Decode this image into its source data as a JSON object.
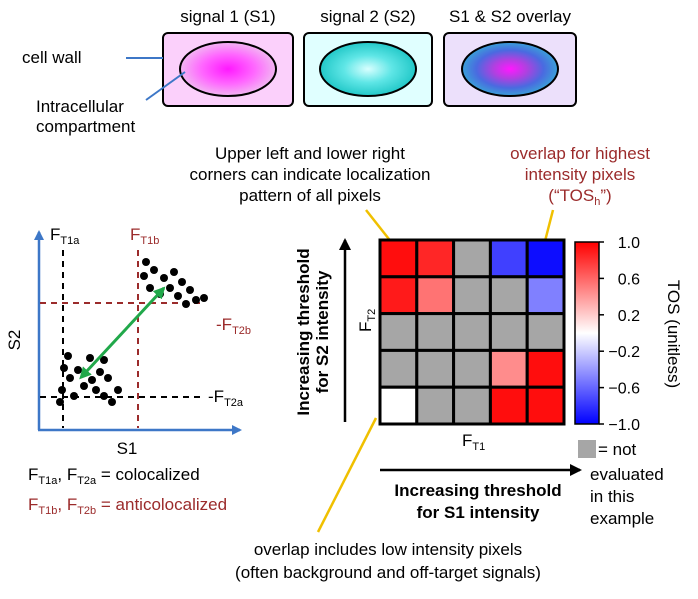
{
  "cells": {
    "labels": [
      "signal 1 (S1)",
      "signal 2 (S2)",
      "S1 & S2 overlay"
    ],
    "cell_wall_label": "cell wall",
    "compartment_label_line1": "Intracellular",
    "compartment_label_line2": "compartment"
  },
  "annotations": {
    "corners_line1": "Upper left and lower right",
    "corners_line2": "corners can indicate localization",
    "corners_line3": "pattern of all pixels",
    "highest_line1": "overlap for highest",
    "highest_line2": "intensity pixels",
    "highest_line3_pre": "(“TOS",
    "highest_line3_sub": "h",
    "highest_line3_post": "”)",
    "low_line1": "overlap includes low intensity pixels",
    "low_line2": "(often background and off-target signals)"
  },
  "scatter": {
    "x_label": "S1",
    "y_label": "S2",
    "ft1a": {
      "main": "F",
      "sub": "T1a"
    },
    "ft1b": {
      "main": "F",
      "sub": "T1b"
    },
    "ft2a": {
      "main": "F",
      "sub": "T2a"
    },
    "ft2b": {
      "main": "F",
      "sub": "T2b"
    },
    "legend_colocalized": {
      "a_main": "F",
      "a_sub": "T1a",
      "sep": ", ",
      "b_main": "F",
      "b_sub": "T2a",
      "text": " = colocalized"
    },
    "legend_anticolocalized": {
      "a_main": "F",
      "a_sub": "T1b",
      "sep": ", ",
      "b_main": "F",
      "b_sub": "T2b",
      "text": " = anticolocalized"
    }
  },
  "heatmap": {
    "ylabel_line1": "Increasing threshold",
    "ylabel_line2": "for S2 intensity",
    "xlabel_line1": "Increasing threshold",
    "xlabel_line2": "for S1 intensity",
    "ft1": {
      "main": "F",
      "sub": "T1"
    },
    "ft2": {
      "main": "F",
      "sub": "T2"
    },
    "colorbar_label": "TOS (unitless)",
    "colorbar_ticks": [
      "1.0",
      "0.6",
      "0.2",
      "−0.2",
      "−0.6",
      "−1.0"
    ],
    "not_evaluated_line1": "= not",
    "not_evaluated_line2": "evaluated",
    "not_evaluated_line3": "in this",
    "not_evaluated_line4": "example"
  },
  "chart_data": {
    "type": "heatmap",
    "ylim": [
      -1.0,
      1.0
    ],
    "grid": [
      [
        0.95,
        0.85,
        null,
        -0.75,
        -0.95
      ],
      [
        0.9,
        0.55,
        null,
        null,
        -0.5
      ],
      [
        null,
        null,
        null,
        null,
        null
      ],
      [
        null,
        null,
        null,
        0.45,
        0.95
      ],
      [
        0.0,
        null,
        null,
        0.95,
        0.95
      ]
    ],
    "colors": {
      "positive": "#ff0000",
      "negative": "#0000ff",
      "zero": "#ffffff",
      "not_evaluated": "#a6a6a6"
    }
  }
}
